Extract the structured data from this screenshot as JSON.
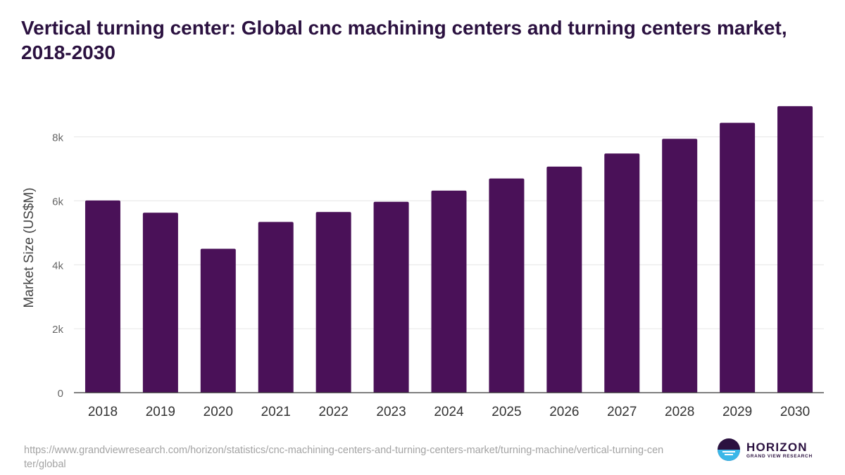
{
  "chart_data": {
    "type": "bar",
    "title": "Vertical turning center: Global cnc machining centers and turning centers market, 2018-2030",
    "xlabel": "",
    "ylabel": "Market Size (US$M)",
    "categories": [
      "2018",
      "2019",
      "2020",
      "2021",
      "2022",
      "2023",
      "2024",
      "2025",
      "2026",
      "2027",
      "2028",
      "2029",
      "2030"
    ],
    "values": [
      6010,
      5630,
      4500,
      5340,
      5650,
      5970,
      6320,
      6700,
      7070,
      7480,
      7940,
      8440,
      8960
    ],
    "ylim": [
      0,
      9200
    ],
    "yticks": [
      0,
      2000,
      4000,
      6000,
      8000
    ],
    "ytick_labels": [
      "0",
      "2k",
      "4k",
      "6k",
      "8k"
    ],
    "grid": true,
    "bar_color": "#4a1158"
  },
  "footer": {
    "source_url": "https://www.grandviewresearch.com/horizon/statistics/cnc-machining-centers-and-turning-centers-market/turning-machine/vertical-turning-center/global"
  },
  "logo": {
    "name": "HORIZON",
    "sub": "GRAND VIEW RESEARCH",
    "colors": {
      "primary": "#2b1140",
      "accent": "#3bb7e8"
    }
  }
}
